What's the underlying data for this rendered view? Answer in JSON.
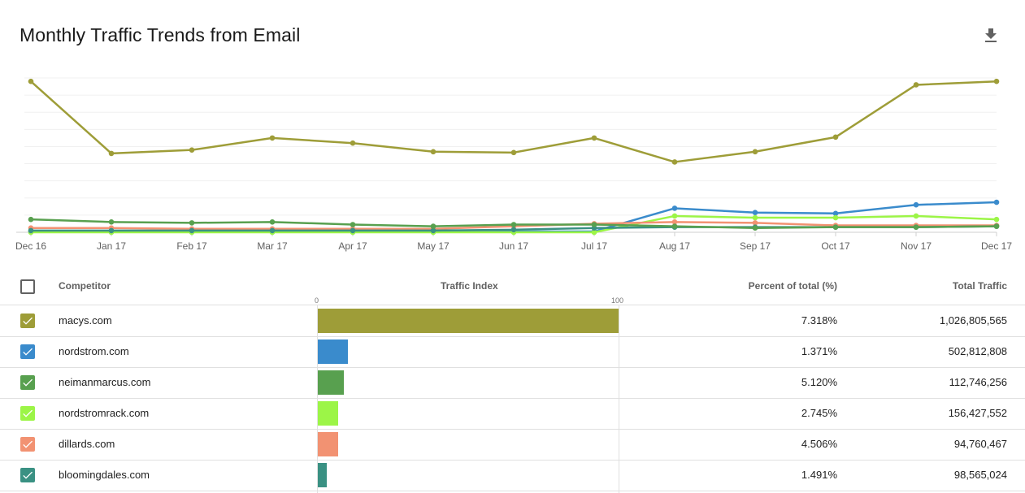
{
  "title": "Monthly Traffic Trends from Email",
  "download_icon": "download-icon",
  "chart_data": {
    "type": "line",
    "title": "Monthly Traffic Trends from Email",
    "x": [
      "Dec 16",
      "Jan 17",
      "Feb 17",
      "Mar 17",
      "Apr 17",
      "May 17",
      "Jun 17",
      "Jul 17",
      "Aug 17",
      "Sep 17",
      "Oct 17",
      "Nov 17",
      "Dec 17"
    ],
    "ylim": [
      0,
      90
    ],
    "grid": true,
    "series": [
      {
        "name": "macys.com",
        "color": "#9e9d38",
        "values": [
          88,
          46,
          48,
          55,
          52,
          47,
          46.5,
          55,
          41,
          47,
          55.5,
          86,
          88
        ]
      },
      {
        "name": "nordstrom.com",
        "color": "#3a8bcc",
        "values": [
          0.5,
          0.5,
          0.5,
          0.5,
          0.5,
          0.5,
          0.5,
          0.5,
          14,
          11.5,
          11,
          16,
          17.5
        ]
      },
      {
        "name": "nordstromrack.com",
        "color": "#9cf547",
        "values": [
          0,
          0,
          0,
          0,
          0,
          0,
          0,
          0,
          9.5,
          8.5,
          8.5,
          9.5,
          7.5
        ]
      },
      {
        "name": "dillards.com",
        "color": "#f29272",
        "values": [
          2.5,
          2.5,
          2,
          2,
          2,
          2,
          3.5,
          5,
          6,
          5.5,
          4,
          4,
          4
        ]
      },
      {
        "name": "bloomingdales.com",
        "color": "#3a9183",
        "values": [
          1,
          1,
          1,
          1,
          1,
          1,
          1.5,
          2.5,
          3,
          3,
          3,
          3,
          3.5
        ]
      },
      {
        "name": "neimanmarcus.com",
        "color": "#58a04f",
        "values": [
          7.5,
          6,
          5.5,
          6,
          4.5,
          3.5,
          4.5,
          4.5,
          3.5,
          2.5,
          3,
          3,
          3.5
        ]
      }
    ]
  },
  "table": {
    "headers": {
      "competitor": "Competitor",
      "traffic_index": "Traffic Index",
      "percent": "Percent of total (%)",
      "total": "Total Traffic"
    },
    "axis_min": "0",
    "axis_max": "100",
    "rows": [
      {
        "name": "macys.com",
        "color": "#9e9d38",
        "index": 100,
        "percent": "7.318%",
        "total": "1,026,805,565"
      },
      {
        "name": "nordstrom.com",
        "color": "#3a8bcc",
        "index": 10,
        "percent": "1.371%",
        "total": "502,812,808"
      },
      {
        "name": "neimanmarcus.com",
        "color": "#58a04f",
        "index": 8.6,
        "percent": "5.120%",
        "total": "112,746,256"
      },
      {
        "name": "nordstromrack.com",
        "color": "#9cf547",
        "index": 6.8,
        "percent": "2.745%",
        "total": "156,427,552"
      },
      {
        "name": "dillards.com",
        "color": "#f29272",
        "index": 6.8,
        "percent": "4.506%",
        "total": "94,760,467"
      },
      {
        "name": "bloomingdales.com",
        "color": "#3a9183",
        "index": 3,
        "percent": "1.491%",
        "total": "98,565,024"
      }
    ]
  }
}
